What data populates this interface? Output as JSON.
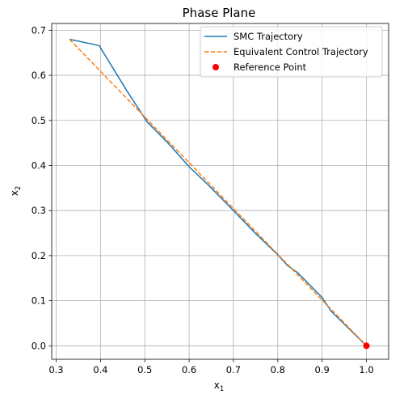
{
  "chart_data": {
    "type": "line",
    "title": "Phase Plane",
    "xlabel_main": "x",
    "xlabel_sub": "1",
    "ylabel_main": "x",
    "ylabel_sub": "2",
    "xlim": [
      0.29,
      1.05
    ],
    "ylim": [
      -0.03,
      0.715
    ],
    "xticks": [
      0.3,
      0.4,
      0.5,
      0.6,
      0.7,
      0.8,
      0.9,
      1.0
    ],
    "xtick_labels": [
      "0.3",
      "0.4",
      "0.5",
      "0.6",
      "0.7",
      "0.8",
      "0.9",
      "1.0"
    ],
    "yticks": [
      0.0,
      0.1,
      0.2,
      0.3,
      0.4,
      0.5,
      0.6,
      0.7
    ],
    "ytick_labels": [
      "0.0",
      "0.1",
      "0.2",
      "0.3",
      "0.4",
      "0.5",
      "0.6",
      "0.7"
    ],
    "grid": true,
    "legend_position": "top-right",
    "series": [
      {
        "name": "SMC Trajectory",
        "style": "solid",
        "color": "#1f77b4",
        "x": [
          0.33,
          0.397,
          0.46,
          0.505,
          0.555,
          0.6,
          0.645,
          0.7,
          0.75,
          0.8,
          0.822,
          0.845,
          0.9,
          0.92,
          1.0
        ],
        "y": [
          0.68,
          0.666,
          0.565,
          0.497,
          0.447,
          0.397,
          0.355,
          0.3,
          0.249,
          0.202,
          0.178,
          0.162,
          0.107,
          0.077,
          0.0
        ]
      },
      {
        "name": "Equivalent Control Trajectory",
        "style": "dashed",
        "color": "#ff7f0e",
        "x": [
          0.33,
          1.0
        ],
        "y": [
          0.68,
          0.0
        ]
      },
      {
        "name": "Reference Point",
        "style": "marker",
        "color": "#ff0000",
        "x": [
          1.0
        ],
        "y": [
          0.0
        ]
      }
    ]
  }
}
